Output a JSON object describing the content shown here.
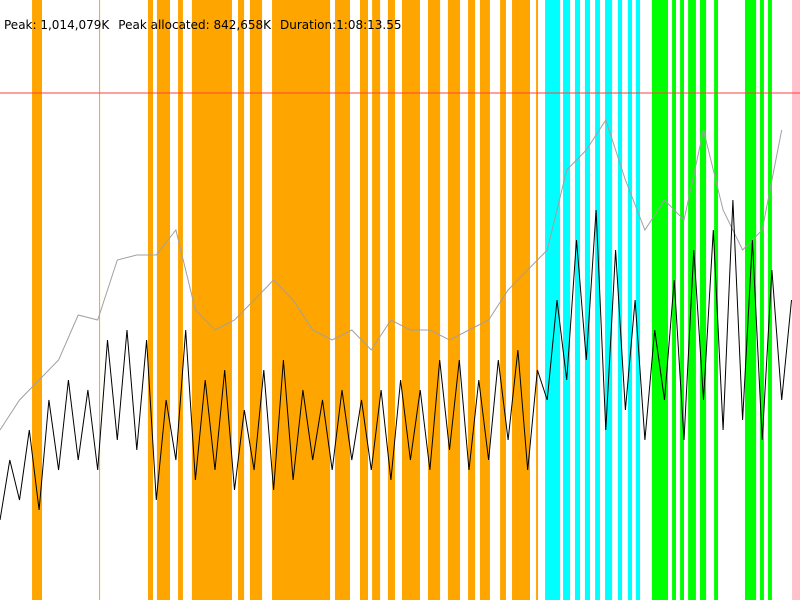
{
  "header": {
    "peak": "Peak: 1,014,079K",
    "peak_allocated": "Peak allocated: 842,658K",
    "duration": "Duration:1:08:13.55"
  },
  "chart_data": {
    "type": "line",
    "xlim": [
      0,
      4093.55
    ],
    "ylim": [
      0,
      1200000
    ],
    "peak_line": {
      "value": 1014079,
      "color": "#ff4040"
    },
    "bands": [
      {
        "color": "#ffa500",
        "spans": [
          [
            164,
            215
          ],
          [
            507,
            512
          ],
          [
            757,
            783
          ],
          [
            803,
            870
          ],
          [
            911,
            936
          ],
          [
            982,
            1187
          ],
          [
            1218,
            1249
          ],
          [
            1279,
            1341
          ],
          [
            1392,
            1689
          ],
          [
            1714,
            1791
          ],
          [
            1842,
            1883
          ],
          [
            1904,
            1945
          ],
          [
            1985,
            2021
          ],
          [
            2057,
            2149
          ],
          [
            2190,
            2252
          ],
          [
            2292,
            2354
          ],
          [
            2395,
            2431
          ],
          [
            2456,
            2507
          ],
          [
            2559,
            2589
          ],
          [
            2620,
            2712
          ],
          [
            2743,
            2753
          ]
        ]
      },
      {
        "color": "#00ffff",
        "spans": [
          [
            2789,
            2866
          ],
          [
            2881,
            2917
          ],
          [
            2942,
            2968
          ],
          [
            2993,
            3019
          ],
          [
            3045,
            3070
          ],
          [
            3096,
            3132
          ],
          [
            3162,
            3183
          ],
          [
            3213,
            3234
          ],
          [
            3254,
            3275
          ]
        ]
      },
      {
        "color": "#00ff00",
        "spans": [
          [
            3336,
            3418
          ],
          [
            3439,
            3459
          ],
          [
            3480,
            3500
          ],
          [
            3521,
            3561
          ],
          [
            3582,
            3613
          ],
          [
            3654,
            3674
          ],
          [
            3812,
            3869
          ],
          [
            3889,
            3909
          ],
          [
            3930,
            3950
          ]
        ]
      },
      {
        "color": "#ffc0cb",
        "spans": [
          [
            4053,
            4094
          ]
        ]
      }
    ],
    "series": [
      {
        "color": "#a0a0a0",
        "x": [
          0,
          100,
          200,
          300,
          400,
          500,
          600,
          700,
          800,
          900,
          1000,
          1100,
          1200,
          1300,
          1400,
          1500,
          1600,
          1700,
          1800,
          1900,
          2000,
          2100,
          2200,
          2300,
          2400,
          2500,
          2600,
          2700,
          2800,
          2900,
          3000,
          3100,
          3200,
          3300,
          3400,
          3500,
          3600,
          3700,
          3800,
          3900,
          4000
        ],
        "values": [
          340000,
          400000,
          440000,
          480000,
          570000,
          560000,
          680000,
          690000,
          690000,
          740000,
          580000,
          540000,
          560000,
          600000,
          640000,
          600000,
          540000,
          520000,
          540000,
          500000,
          560000,
          540000,
          540000,
          520000,
          540000,
          560000,
          620000,
          660000,
          700000,
          860000,
          900000,
          960000,
          840000,
          740000,
          800000,
          760000,
          940000,
          780000,
          700000,
          740000,
          940000
        ]
      },
      {
        "color": "#000000",
        "x": [
          0,
          50,
          100,
          150,
          200,
          250,
          300,
          350,
          400,
          450,
          500,
          550,
          600,
          650,
          700,
          750,
          800,
          850,
          900,
          950,
          1000,
          1050,
          1100,
          1150,
          1200,
          1250,
          1300,
          1350,
          1400,
          1450,
          1500,
          1550,
          1600,
          1650,
          1700,
          1750,
          1800,
          1850,
          1900,
          1950,
          2000,
          2050,
          2100,
          2150,
          2200,
          2250,
          2300,
          2350,
          2400,
          2450,
          2500,
          2550,
          2600,
          2650,
          2700,
          2750,
          2800,
          2850,
          2900,
          2950,
          3000,
          3050,
          3100,
          3150,
          3200,
          3250,
          3300,
          3350,
          3400,
          3450,
          3500,
          3550,
          3600,
          3650,
          3700,
          3750,
          3800,
          3850,
          3900,
          3950,
          4000,
          4050
        ],
        "values": [
          160000,
          280000,
          200000,
          340000,
          180000,
          400000,
          260000,
          440000,
          280000,
          420000,
          260000,
          520000,
          320000,
          540000,
          300000,
          520000,
          200000,
          400000,
          280000,
          540000,
          240000,
          440000,
          260000,
          460000,
          220000,
          380000,
          260000,
          460000,
          220000,
          480000,
          240000,
          420000,
          280000,
          400000,
          260000,
          420000,
          280000,
          400000,
          260000,
          420000,
          240000,
          440000,
          280000,
          420000,
          260000,
          480000,
          300000,
          480000,
          260000,
          440000,
          280000,
          480000,
          320000,
          500000,
          260000,
          460000,
          400000,
          600000,
          440000,
          720000,
          480000,
          780000,
          340000,
          700000,
          380000,
          600000,
          320000,
          540000,
          400000,
          640000,
          320000,
          700000,
          400000,
          740000,
          340000,
          800000,
          360000,
          720000,
          320000,
          660000,
          400000,
          600000
        ]
      }
    ]
  }
}
